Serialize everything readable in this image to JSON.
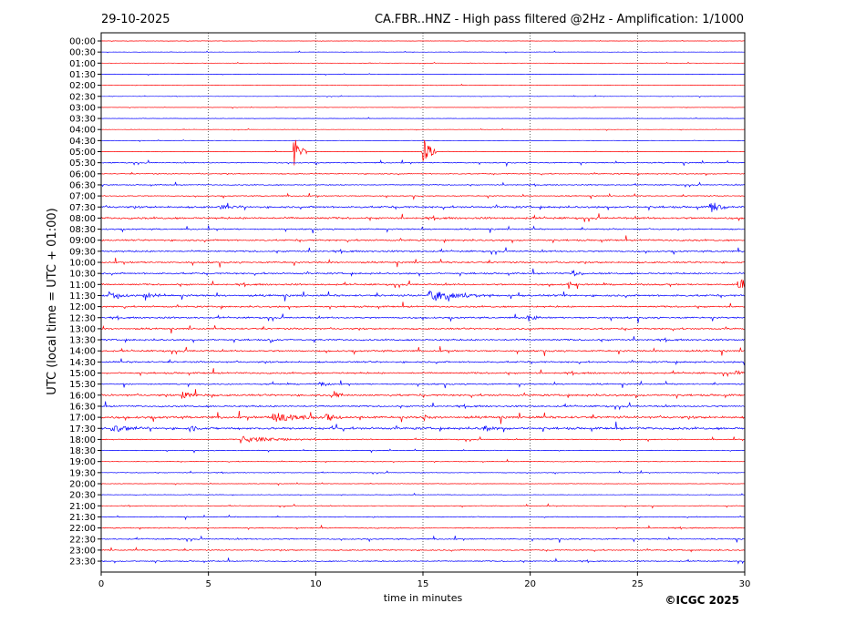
{
  "header": {
    "date": "29-10-2025",
    "title": "CA.FBR..HNZ - High pass filtered @2Hz - Amplification: 1/1000"
  },
  "footer": {
    "copyright": "©ICGC 2025"
  },
  "chart_data": {
    "type": "line",
    "xlabel": "time in minutes",
    "ylabel": "UTC (local time = UTC + 01:00)",
    "xlim": [
      0,
      30
    ],
    "x_ticks": [
      "0",
      "5",
      "10",
      "15",
      "20",
      "25",
      "30"
    ],
    "x_tick_values": [
      0,
      5,
      10,
      15,
      20,
      25,
      30
    ],
    "grid": "vertical dotted at 5-minute intervals",
    "trace_colors": [
      "#ff0000",
      "#0000ff"
    ],
    "color_pattern": "alternating red/blue per 30-minute row",
    "rows": [
      {
        "label": "00:00",
        "color": "red",
        "noise": 0.1
      },
      {
        "label": "00:30",
        "color": "blue",
        "noise": 0.1
      },
      {
        "label": "01:00",
        "color": "red",
        "noise": 0.1
      },
      {
        "label": "01:30",
        "color": "blue",
        "noise": 0.1
      },
      {
        "label": "02:00",
        "color": "red",
        "noise": 0.1
      },
      {
        "label": "02:30",
        "color": "blue",
        "noise": 0.1
      },
      {
        "label": "03:00",
        "color": "red",
        "noise": 0.1
      },
      {
        "label": "03:30",
        "color": "blue",
        "noise": 0.1
      },
      {
        "label": "04:00",
        "color": "red",
        "noise": 0.1
      },
      {
        "label": "04:30",
        "color": "blue",
        "noise": 0.1
      },
      {
        "label": "05:00",
        "color": "red",
        "noise": 0.1,
        "events": [
          {
            "t": 9.0,
            "amp": 3.5,
            "dur": 0.3
          },
          {
            "t": 15.0,
            "amp": 3.5,
            "dur": 0.3
          }
        ]
      },
      {
        "label": "05:30",
        "color": "blue",
        "noise": 0.3
      },
      {
        "label": "06:00",
        "color": "red",
        "noise": 0.3
      },
      {
        "label": "06:30",
        "color": "blue",
        "noise": 0.3
      },
      {
        "label": "07:00",
        "color": "red",
        "noise": 0.3
      },
      {
        "label": "07:30",
        "color": "blue",
        "noise": 0.6,
        "events": [
          {
            "t": 28.4,
            "amp": 1.5,
            "dur": 0.4
          },
          {
            "t": 5.6,
            "amp": 0.6,
            "dur": 0.3
          }
        ]
      },
      {
        "label": "08:00",
        "color": "red",
        "noise": 0.6
      },
      {
        "label": "08:30",
        "color": "blue",
        "noise": 0.4
      },
      {
        "label": "09:00",
        "color": "red",
        "noise": 0.5
      },
      {
        "label": "09:30",
        "color": "blue",
        "noise": 0.5
      },
      {
        "label": "10:00",
        "color": "red",
        "noise": 0.5
      },
      {
        "label": "10:30",
        "color": "blue",
        "noise": 0.5,
        "events": [
          {
            "t": 22.0,
            "amp": 0.8,
            "dur": 0.2
          }
        ]
      },
      {
        "label": "11:00",
        "color": "red",
        "noise": 0.5,
        "events": [
          {
            "t": 29.7,
            "amp": 1.6,
            "dur": 0.6
          },
          {
            "t": 21.8,
            "amp": 1.0,
            "dur": 0.2
          }
        ]
      },
      {
        "label": "11:30",
        "color": "blue",
        "noise": 0.6,
        "events": [
          {
            "t": 15.3,
            "amp": 1.2,
            "dur": 1.5
          },
          {
            "t": 0.4,
            "amp": 1.0,
            "dur": 0.5
          },
          {
            "t": 2.0,
            "amp": 0.8,
            "dur": 0.6
          }
        ]
      },
      {
        "label": "12:00",
        "color": "red",
        "noise": 0.5
      },
      {
        "label": "12:30",
        "color": "blue",
        "noise": 0.5,
        "events": [
          {
            "t": 19.9,
            "amp": 1.0,
            "dur": 0.3
          }
        ]
      },
      {
        "label": "13:00",
        "color": "red",
        "noise": 0.5
      },
      {
        "label": "13:30",
        "color": "blue",
        "noise": 0.5,
        "events": [
          {
            "t": 7.9,
            "amp": 0.8,
            "dur": 0.2
          }
        ]
      },
      {
        "label": "14:00",
        "color": "red",
        "noise": 0.5
      },
      {
        "label": "14:30",
        "color": "blue",
        "noise": 0.5
      },
      {
        "label": "15:00",
        "color": "red",
        "noise": 0.5,
        "events": [
          {
            "t": 29.6,
            "amp": 0.5,
            "dur": 0.5
          }
        ]
      },
      {
        "label": "15:30",
        "color": "blue",
        "noise": 0.4,
        "events": [
          {
            "t": 10.2,
            "amp": 0.6,
            "dur": 0.4
          }
        ]
      },
      {
        "label": "16:00",
        "color": "red",
        "noise": 0.6,
        "events": [
          {
            "t": 3.8,
            "amp": 0.8,
            "dur": 0.4
          },
          {
            "t": 10.9,
            "amp": 1.0,
            "dur": 0.2
          }
        ]
      },
      {
        "label": "16:30",
        "color": "blue",
        "noise": 0.5
      },
      {
        "label": "17:00",
        "color": "red",
        "noise": 0.7,
        "events": [
          {
            "t": 8.0,
            "amp": 1.2,
            "dur": 1.2
          },
          {
            "t": 10.5,
            "amp": 1.0,
            "dur": 0.4
          },
          {
            "t": 15.0,
            "amp": 0.8,
            "dur": 0.3
          }
        ]
      },
      {
        "label": "17:30",
        "color": "blue",
        "noise": 0.7,
        "events": [
          {
            "t": 0.5,
            "amp": 0.8,
            "dur": 0.8
          },
          {
            "t": 4.0,
            "amp": 0.7,
            "dur": 0.4
          },
          {
            "t": 17.8,
            "amp": 0.7,
            "dur": 0.6
          }
        ]
      },
      {
        "label": "18:00",
        "color": "red",
        "noise": 0.3,
        "events": [
          {
            "t": 6.5,
            "amp": 0.8,
            "dur": 1.5
          }
        ]
      },
      {
        "label": "18:30",
        "color": "blue",
        "noise": 0.2
      },
      {
        "label": "19:00",
        "color": "red",
        "noise": 0.2
      },
      {
        "label": "19:30",
        "color": "blue",
        "noise": 0.2
      },
      {
        "label": "20:00",
        "color": "red",
        "noise": 0.15
      },
      {
        "label": "20:30",
        "color": "blue",
        "noise": 0.15
      },
      {
        "label": "21:00",
        "color": "red",
        "noise": 0.2
      },
      {
        "label": "21:30",
        "color": "blue",
        "noise": 0.25
      },
      {
        "label": "22:00",
        "color": "red",
        "noise": 0.3
      },
      {
        "label": "22:30",
        "color": "blue",
        "noise": 0.35
      },
      {
        "label": "23:00",
        "color": "red",
        "noise": 0.35
      },
      {
        "label": "23:30",
        "color": "blue",
        "noise": 0.35
      }
    ]
  }
}
